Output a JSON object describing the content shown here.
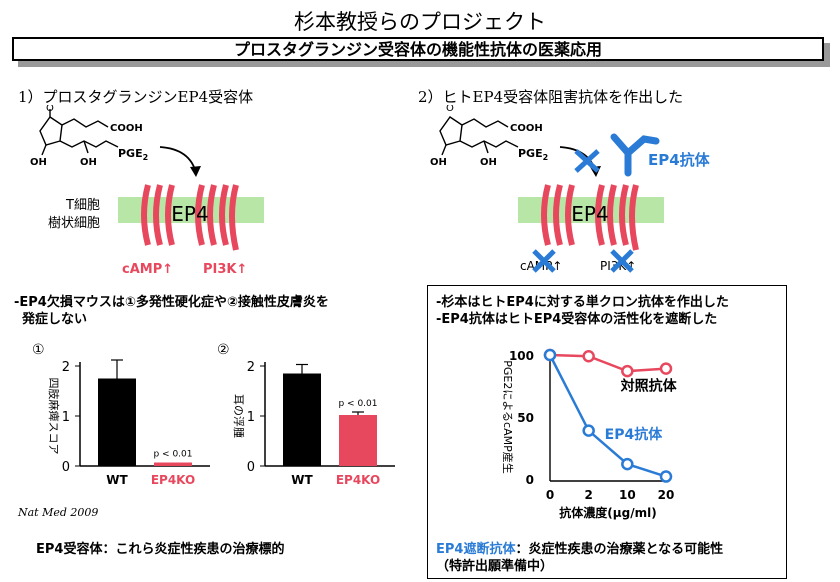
{
  "title": "杉本教授らのプロジェクト",
  "subtitle": "プロスタグランジン受容体の機能性抗体の医薬応用",
  "left": {
    "heading": "1）プロスタグランジンEP4受容体",
    "pge2_label": "PGE",
    "pge2_sub": "2",
    "cooh": "COOH",
    "oh1": "OH",
    "oh2": "OH",
    "receptor_label": "EP4",
    "cell_line1": "T細胞",
    "cell_line2": "樹状細胞",
    "camp": "cAMP↑",
    "pi3k": "PI3K↑",
    "note_line1": "-EP4欠損マウスは①多発性硬化症や②接触性皮膚炎を",
    "note_line2": "発症しない",
    "citation": "Nat Med 2009",
    "conclusion": "EP4受容体：これら炎症性疾患の治療標的"
  },
  "right": {
    "heading": "2）ヒトEP4受容体阻害抗体を作出した",
    "pge2_label": "PGE",
    "pge2_sub": "2",
    "cooh": "COOH",
    "oh1": "OH",
    "oh2": "OH",
    "receptor_label": "EP4",
    "antibody_label": "EP4抗体",
    "camp": "cAMP↑",
    "pi3k": "PI3K↑",
    "box_line1": "-杉本はヒトEP4に対する単クロン抗体を作出した",
    "box_line2": "-EP4抗体はヒトEP4受容体の活性化を遮断した",
    "conclusion_highlight": "EP4遮断抗体",
    "conclusion_rest": "：炎症性疾患の治療薬となる可能性",
    "conclusion_line2": "（特許出願準備中）"
  },
  "colors": {
    "red": "#e8485e",
    "blue": "#2a7bd6",
    "membrane": "#b8e6a6"
  },
  "chart_data": [
    {
      "type": "bar",
      "marker": "①",
      "ylabel": "四肢麻痺スコア",
      "categories": [
        "WT",
        "EP4KO"
      ],
      "values": [
        1.75,
        0.07
      ],
      "errors": [
        0.37,
        0.0
      ],
      "ylim": [
        0,
        2
      ],
      "yticks": [
        0,
        1,
        2
      ],
      "annotation": "p < 0.01",
      "bar_colors": [
        "#000000",
        "#e8485e"
      ]
    },
    {
      "type": "bar",
      "marker": "②",
      "ylabel": "耳の浮腫",
      "categories": [
        "WT",
        "EP4KO"
      ],
      "values": [
        1.85,
        1.02
      ],
      "errors": [
        0.18,
        0.06
      ],
      "ylim": [
        0,
        2
      ],
      "yticks": [
        0,
        1,
        2
      ],
      "annotation": "p < 0.01",
      "bar_colors": [
        "#000000",
        "#e8485e"
      ]
    },
    {
      "type": "line",
      "ylabel": "PGE2によるcAMP産生",
      "xlabel": "抗体濃度(μg/ml)",
      "x": [
        "0",
        "2",
        "10",
        "20"
      ],
      "ylim": [
        0,
        100
      ],
      "yticks": [
        0,
        50,
        100
      ],
      "series": [
        {
          "name": "対照抗体",
          "values": [
            100,
            99,
            87,
            89
          ],
          "color": "#e8485e"
        },
        {
          "name": "EP4抗体",
          "values": [
            100,
            39,
            12,
            2
          ],
          "color": "#2a7bd6"
        }
      ]
    }
  ]
}
